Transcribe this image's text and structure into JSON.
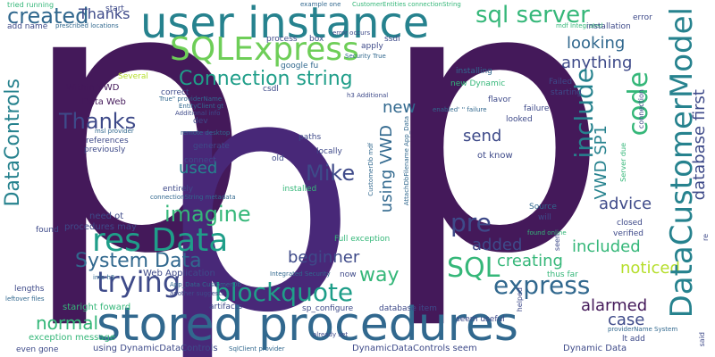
{
  "palette": {
    "purple": "#44195a",
    "indigo": "#3e4a89",
    "blue": "#31688e",
    "teal": "#26828e",
    "green": "#1f9e89",
    "lightgreen": "#35b779",
    "lime": "#6ece58",
    "yellow": "#b5de2b"
  },
  "words": {
    "p1": "p",
    "p2": "p",
    "p3": "p",
    "user_instance": "user instance",
    "stored_procedures": "stored procedures",
    "sqlexpress": "SQLExpress",
    "connection_string": "Connection string",
    "res_data": "res Data",
    "sql_server": "sql server",
    "created": "created",
    "datacustomermodel": "DataCustomerModel",
    "code": "code",
    "include": "include",
    "database_first": "database first",
    "vwd_sp1": "VWD SP1",
    "datacontrols": "DataControls",
    "thanks": "Thanks",
    "mike": "Mike",
    "imagine": "imagine",
    "system_data": "System Data",
    "trying": "trying",
    "blockquote": "blockquote",
    "normal": "normal",
    "sql": "SQL",
    "express": "express",
    "beginner": "beginner",
    "way": "way",
    "pre": "pre",
    "added": "added",
    "creating": "creating",
    "included": "included",
    "noticed": "noticed",
    "alarmed": "alarmed",
    "case": "case",
    "advice": "advice",
    "send": "send",
    "new": "new",
    "using_vwd": "using VWD",
    "used": "used",
    "looking": "looking",
    "anything": "anything",
    "thanks2": "Thanks",
    "tried_running": "tried running",
    "add_name": "add name",
    "start": "start",
    "name_customerentities": "name CustomerEntities",
    "error": "error",
    "flavor": "flavor",
    "failed": "Failed",
    "starting": "starting",
    "looked": "looked",
    "ot_know": "ot know",
    "new_dynamic": "new Dynamic",
    "installing": "installing",
    "installation": "installation",
    "apply": "apply",
    "ssdl": "ssdl",
    "process": "process",
    "box": "box",
    "google_fu": "google fu",
    "security_true": "Security True",
    "error_occurs": "error occurs",
    "within_vwd": "Within VWD",
    "data_web": "Data Web",
    "several": "Several",
    "correct": "correct",
    "csdl": "csdl",
    "h3_additional": "h3 Additional",
    "entityclient_gt": "EntityClient gt",
    "additional_info": "Additional info",
    "dev": "dev",
    "msl_provider": "msl provider",
    "references": "references",
    "previously": "previously",
    "remote_desktop": "remote desktop",
    "generate": "generate",
    "paths": "paths",
    "locally": "locally",
    "connect": "connect",
    "old": "old",
    "installed": "installed",
    "entirely": "entirely",
    "connectionstring_metadata": "connectionString metadata",
    "need_ot": "need ot",
    "procedures_may": "procedures may",
    "found": "found",
    "full_exception": "Full exception",
    "web_application": "Web Application",
    "info_h3": "info h3",
    "starlight_foward": "staright foward",
    "lengths": "lengths",
    "leftover_files": "leftover files",
    "integrated_security": "Integrated Security",
    "now": "now",
    "app_data_customerdb": "App_Data CustomerDb",
    "another_suggests": "another suggests",
    "artifacts": "artifacts",
    "sp_configure": "sp_configure",
    "database_item": "database item",
    "seem_useful": "seem useful",
    "exception_message": "exception message",
    "even_gone": "even gone",
    "using_dynamicdatacontrols": "using DynamicDataControls",
    "sqlclient_provider": "SqlClient provider",
    "already_set": "already set",
    "dynamicdatacontrols_seem": "DynamicDataControls seem",
    "dynamic_data": "Dynamic Data",
    "lt_add": "lt add",
    "source": "Source",
    "will": "will",
    "closed": "closed",
    "verified": "verified",
    "thus_far": "thus far",
    "helped": "helped",
    "seen": "seen",
    "failure": "failure",
    "connection": "connection",
    "server_due": "Server due",
    "re": "re",
    "said": "said",
    "providername_system": "providerName System",
    "example_one": "example one",
    "customerentities_connectionstring": "CustomerEntities connectionString",
    "mdf_integrated": "mdf Integrated",
    "prescribed_locations": "prescribed locations",
    "true_providername": "True\" providerName",
    "enabled_failure": "enabled' '' failure",
    "customerdb_mdf": "CustomerDb mdf",
    "attachdbfilename_app_data": "AttachDbFilename App_Data",
    "found_online": "found online"
  }
}
